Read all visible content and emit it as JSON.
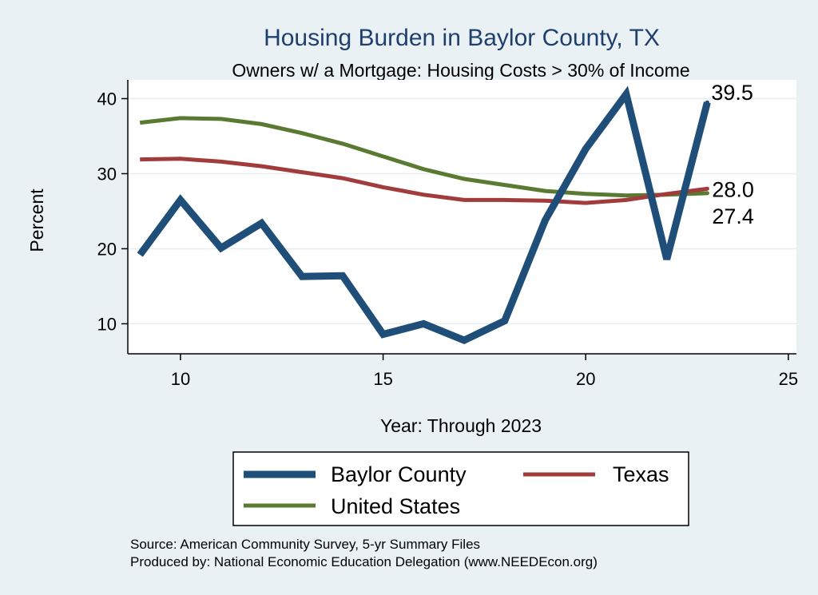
{
  "chart_data": {
    "type": "line",
    "title": "Housing Burden in Baylor County, TX",
    "subtitle": "Owners w/ a Mortgage: Housing Costs > 30% of Income",
    "xlabel": "Year: Through 2023",
    "ylabel": "Percent",
    "xlim": [
      8.7,
      25.2
    ],
    "ylim": [
      6,
      42.5
    ],
    "xticks": [
      10,
      15,
      20,
      25
    ],
    "yticks": [
      10,
      20,
      30,
      40
    ],
    "grid": true,
    "x": [
      9,
      10,
      11,
      12,
      13,
      14,
      15,
      16,
      17,
      18,
      19,
      20,
      21,
      22,
      23
    ],
    "series": [
      {
        "name": "Baylor County",
        "color": "#1f4e79",
        "width": 9,
        "values": [
          19.2,
          26.5,
          20.1,
          23.4,
          16.3,
          16.4,
          8.6,
          10.0,
          7.8,
          10.4,
          23.8,
          33.3,
          40.6,
          18.6,
          39.5
        ],
        "end_label": "39.5"
      },
      {
        "name": "Texas",
        "color": "#a23b3b",
        "width": 5,
        "values": [
          31.9,
          32.0,
          31.6,
          31.0,
          30.2,
          29.4,
          28.2,
          27.2,
          26.5,
          26.5,
          26.4,
          26.1,
          26.5,
          27.3,
          28.0
        ],
        "end_label": "28.0"
      },
      {
        "name": "United States",
        "color": "#5a7a32",
        "width": 5,
        "values": [
          36.8,
          37.4,
          37.3,
          36.6,
          35.4,
          34.0,
          32.3,
          30.6,
          29.3,
          28.5,
          27.7,
          27.3,
          27.1,
          27.2,
          27.4
        ],
        "end_label": "27.4"
      }
    ],
    "legend": {
      "position": "bottom",
      "entries": [
        "Baylor County",
        "Texas",
        "United States"
      ]
    }
  },
  "source_note": "Source: American Community Survey, 5-yr Summary Files",
  "produced_note": "Produced by: National Economic Education Delegation (www.NEEDEcon.org)"
}
